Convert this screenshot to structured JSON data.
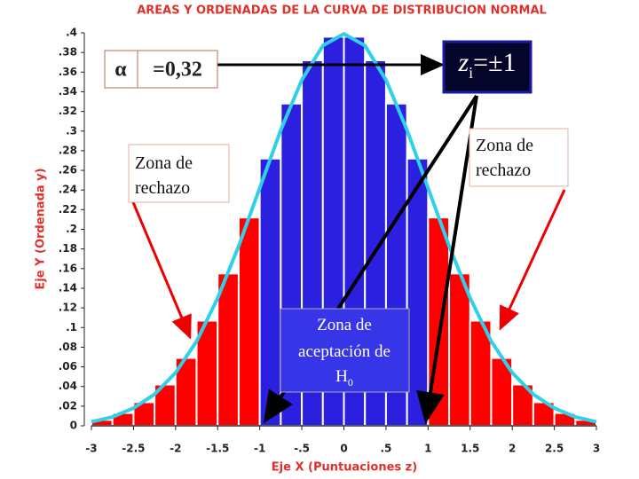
{
  "chart_data": {
    "type": "histogram",
    "title": "AREAS Y ORDENADAS DE LA CURVA DE DISTRIBUCION NORMAL",
    "x_label": "Eje X (Puntuaciones z)",
    "y_label": "Eje Y (Ordenada y)",
    "bins": [
      -3,
      -2.75,
      -2.5,
      -2.25,
      -2,
      -1.75,
      -1.5,
      -1.25,
      -1,
      -0.75,
      -0.5,
      -0.25,
      0,
      0.25,
      0.5,
      0.75,
      1,
      1.25,
      1.5,
      1.75,
      2,
      2.25,
      2.5,
      2.75,
      3
    ],
    "counts": [
      0.006,
      0.013,
      0.024,
      0.042,
      0.069,
      0.107,
      0.155,
      0.212,
      0.272,
      0.328,
      0.372,
      0.396,
      0.396,
      0.372,
      0.328,
      0.272,
      0.212,
      0.155,
      0.107,
      0.069,
      0.042,
      0.024,
      0.013,
      0.006
    ],
    "bar_colors": [
      "#ff0000",
      "#ff0000",
      "#ff0000",
      "#ff0000",
      "#ff0000",
      "#ff0000",
      "#ff0000",
      "#ff0000",
      "#2b1fe0",
      "#2b1fe0",
      "#2b1fe0",
      "#2b1fe0",
      "#2b1fe0",
      "#2b1fe0",
      "#2b1fe0",
      "#2b1fe0",
      "#ff0000",
      "#ff0000",
      "#ff0000",
      "#ff0000",
      "#ff0000",
      "#ff0000",
      "#ff0000",
      "#ff0000"
    ],
    "curve": {
      "color": "#2fd0e8",
      "x": [
        -3,
        -2.75,
        -2.5,
        -2.25,
        -2,
        -1.75,
        -1.5,
        -1.25,
        -1,
        -0.75,
        -0.5,
        -0.25,
        0,
        0.25,
        0.5,
        0.75,
        1,
        1.25,
        1.5,
        1.75,
        2,
        2.25,
        2.5,
        2.75,
        3
      ],
      "values": [
        0.004,
        0.009,
        0.018,
        0.032,
        0.054,
        0.086,
        0.13,
        0.183,
        0.242,
        0.301,
        0.352,
        0.387,
        0.399,
        0.387,
        0.352,
        0.301,
        0.242,
        0.183,
        0.13,
        0.086,
        0.054,
        0.032,
        0.018,
        0.009,
        0.004
      ]
    },
    "xlim": [
      -3,
      3
    ],
    "xticks": [
      -3,
      -2.5,
      -2,
      -1.5,
      -1,
      {
        "value": -0.5,
        "label": "-.5"
      },
      0,
      {
        "value": 0.5,
        "label": ".5"
      },
      1,
      1.5,
      2,
      2.5,
      3
    ],
    "ylim": [
      0,
      0.4
    ],
    "yticks": [
      0,
      {
        "value": 0.02,
        "label": ".02"
      },
      {
        "value": 0.04,
        "label": ".04"
      },
      {
        "value": 0.06,
        "label": ".06"
      },
      {
        "value": 0.08,
        "label": ".08"
      },
      {
        "value": 0.1,
        "label": ".1"
      },
      {
        "value": 0.12,
        "label": ".12"
      },
      {
        "value": 0.14,
        "label": ".14"
      },
      {
        "value": 0.16,
        "label": ".16"
      },
      {
        "value": 0.18,
        "label": ".18"
      },
      {
        "value": 0.2,
        "label": ".2"
      },
      {
        "value": 0.22,
        "label": ".22"
      },
      {
        "value": 0.24,
        "label": ".24"
      },
      {
        "value": 0.26,
        "label": ".26"
      },
      {
        "value": 0.28,
        "label": ".28"
      },
      {
        "value": 0.3,
        "label": ".3"
      },
      {
        "value": 0.32,
        "label": ".32"
      },
      {
        "value": 0.34,
        "label": ".34"
      },
      {
        "value": 0.36,
        "label": ".36"
      },
      {
        "value": 0.38,
        "label": ".38"
      },
      {
        "value": 0.4,
        "label": ".4"
      }
    ],
    "annotations": {
      "alpha": {
        "symbol": "α",
        "text": "=0,32"
      },
      "critical": {
        "base": "z",
        "sub": "i",
        "rest": "=±1"
      },
      "left_zone": [
        "Zona de",
        "rechazo"
      ],
      "right_zone": [
        "Zona de",
        "rechazo"
      ],
      "accept_zone": {
        "lines": [
          "Zona de",
          "aceptación de"
        ],
        "base": "H",
        "sub": "0"
      }
    }
  }
}
